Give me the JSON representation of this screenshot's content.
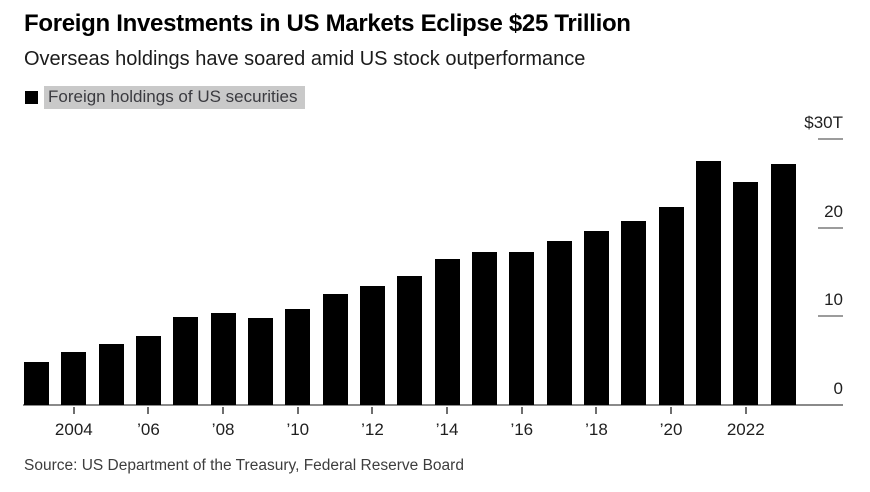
{
  "header": {
    "title": "Foreign Investments in US Markets Eclipse $25 Trillion",
    "subtitle": "Overseas holdings have soared amid US stock outperformance"
  },
  "legend": {
    "label": "Foreign holdings of US securities",
    "swatch_color": "#000000",
    "highlight_color": "#c9c9c9"
  },
  "chart_data": {
    "type": "bar",
    "title": "Foreign Investments in US Markets Eclipse $25 Trillion",
    "subtitle": "Overseas holdings have soared amid US stock outperformance",
    "unit": "USD trillions",
    "categories": [
      2003,
      2004,
      2005,
      2006,
      2007,
      2008,
      2009,
      2010,
      2011,
      2012,
      2013,
      2014,
      2015,
      2016,
      2017,
      2018,
      2019,
      2020,
      2021,
      2022,
      2023
    ],
    "series": [
      {
        "name": "Foreign holdings of US securities",
        "values": [
          4.9,
          6.0,
          6.9,
          7.8,
          9.9,
          10.4,
          9.8,
          10.8,
          12.5,
          13.4,
          14.5,
          16.5,
          17.3,
          17.3,
          18.5,
          19.6,
          20.7,
          22.3,
          27.5,
          25.1,
          27.2
        ]
      }
    ],
    "bar_color": "#000000",
    "ylim": [
      0,
      30
    ],
    "yticks": [
      {
        "value": 30,
        "label": "$30T"
      },
      {
        "value": 20,
        "label": "20"
      },
      {
        "value": 10,
        "label": "10"
      },
      {
        "value": 0,
        "label": "0"
      }
    ],
    "xticks": [
      {
        "category": 2004,
        "label": "2004"
      },
      {
        "category": 2006,
        "label": "’06"
      },
      {
        "category": 2008,
        "label": "’08"
      },
      {
        "category": 2010,
        "label": "’10"
      },
      {
        "category": 2012,
        "label": "’12"
      },
      {
        "category": 2014,
        "label": "’14"
      },
      {
        "category": 2016,
        "label": "’16"
      },
      {
        "category": 2018,
        "label": "’18"
      },
      {
        "category": 2020,
        "label": "’20"
      },
      {
        "category": 2022,
        "label": "2022"
      }
    ],
    "grid": false,
    "legend_position": "top-left"
  },
  "source": "Source: US Department of the Treasury, Federal Reserve Board"
}
